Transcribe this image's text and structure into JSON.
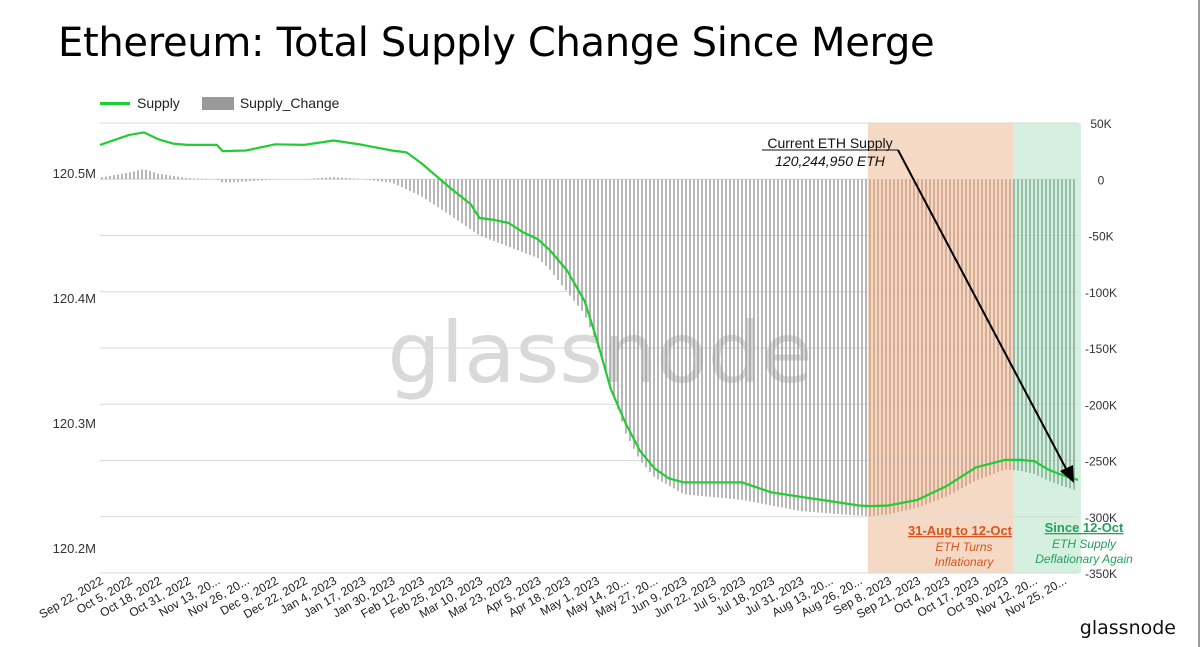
{
  "title": "Ethereum: Total Supply Change Since Merge",
  "brand": "glassnode",
  "watermark": "glassnode",
  "colors": {
    "supply_line": "#22cc33",
    "supply_change": "#999999",
    "inflationary_zone": "#f5d9c4",
    "inflationary_bars": "#c99a80",
    "deflationary_zone": "#d5f0de",
    "deflationary_bars": "#7aa88e",
    "grid": "#d9d9d9",
    "inflation_text": "#d9541e",
    "deflation_text": "#23a15c"
  },
  "chart_data": {
    "type": "line",
    "legend": {
      "position": "top-left",
      "items": [
        "Supply",
        "Supply_Change"
      ]
    },
    "x_ticks": [
      "Sep 22, 2022",
      "Oct 5, 2022",
      "Oct 18, 2022",
      "Oct 31, 2022",
      "Nov 13, 20...",
      "Nov 26, 20...",
      "Dec 9, 2022",
      "Dec 22, 2022",
      "Jan 4, 2023",
      "Jan 17, 2023",
      "Jan 30, 2023",
      "Feb 12, 2023",
      "Feb 25, 2023",
      "Mar 10, 2023",
      "Mar 23, 2023",
      "Apr 5, 2023",
      "Apr 18, 2023",
      "May 1, 2023",
      "May 14, 20...",
      "May 27, 20...",
      "Jun 9, 2023",
      "Jun 22, 2023",
      "Jul 5, 2023",
      "Jul 18, 2023",
      "Jul 31, 2023",
      "Aug 13, 20...",
      "Aug 26, 20...",
      "Sep 8, 2023",
      "Sep 21, 2023",
      "Oct 4, 2023",
      "Oct 17, 2023",
      "Oct 30, 2023",
      "Nov 12, 20...",
      "Nov 25, 20..."
    ],
    "y_left": {
      "label": "",
      "ticks": [
        "120.5M",
        "120.4M",
        "120.3M",
        "120.2M"
      ],
      "tick_values": [
        120.5,
        120.4,
        120.3,
        120.2
      ],
      "range": [
        120.18,
        120.54
      ]
    },
    "y_right": {
      "label": "",
      "ticks": [
        "50K",
        "0",
        "-50K",
        "-100K",
        "-150K",
        "-200K",
        "-250K",
        "-300K",
        "-350K"
      ],
      "tick_values": [
        50000,
        0,
        -50000,
        -100000,
        -150000,
        -200000,
        -250000,
        -300000,
        -350000
      ],
      "range": [
        -350000,
        50000
      ]
    },
    "grid": true,
    "series": [
      {
        "name": "Supply",
        "axis": "left",
        "note": "values in millions ETH, indexed by x-tick position",
        "points": [
          [
            0,
            120.5225
          ],
          [
            0.5,
            120.5265
          ],
          [
            1,
            120.5305
          ],
          [
            1.5,
            120.5325
          ],
          [
            2,
            120.527
          ],
          [
            2.5,
            120.5235
          ],
          [
            3,
            120.5225
          ],
          [
            3.5,
            120.5225
          ],
          [
            4,
            120.5225
          ],
          [
            4.2,
            120.5175
          ],
          [
            5,
            120.518
          ],
          [
            6,
            120.523
          ],
          [
            7,
            120.5225
          ],
          [
            8,
            120.526
          ],
          [
            9,
            120.5225
          ],
          [
            10,
            120.518
          ],
          [
            10.5,
            120.5165
          ],
          [
            11,
            120.508
          ],
          [
            11.5,
            120.498
          ],
          [
            12,
            120.488
          ],
          [
            12.7,
            120.475
          ],
          [
            13,
            120.464
          ],
          [
            13.5,
            120.4625
          ],
          [
            14,
            120.46
          ],
          [
            14.5,
            120.4525
          ],
          [
            15,
            120.447
          ],
          [
            15.4,
            120.4385
          ],
          [
            16,
            120.422
          ],
          [
            16.6,
            120.3975
          ],
          [
            17,
            120.368
          ],
          [
            17.5,
            120.327
          ],
          [
            18,
            120.3
          ],
          [
            18.5,
            120.2775
          ],
          [
            19,
            120.2635
          ],
          [
            19.5,
            120.2555
          ],
          [
            20,
            120.2525
          ],
          [
            21,
            120.2525
          ],
          [
            22,
            120.2525
          ],
          [
            22.5,
            120.2485
          ],
          [
            23,
            120.2445
          ],
          [
            24,
            120.241
          ],
          [
            25,
            120.2375
          ],
          [
            26,
            120.234
          ],
          [
            26.4,
            120.2335
          ],
          [
            27,
            120.234
          ],
          [
            28,
            120.2385
          ],
          [
            29,
            120.2495
          ],
          [
            30,
            120.2645
          ],
          [
            31,
            120.2705
          ],
          [
            31.5,
            120.2705
          ],
          [
            32,
            120.2695
          ],
          [
            32.5,
            120.2625
          ],
          [
            33,
            120.258
          ],
          [
            33.5,
            120.2545
          ]
        ]
      },
      {
        "name": "Supply_Change",
        "axis": "right",
        "note": "cumulative change in ETH (bars), indexed by x-tick position",
        "points": [
          [
            0,
            1500
          ],
          [
            1,
            6000
          ],
          [
            1.5,
            9000
          ],
          [
            2,
            5000
          ],
          [
            3,
            1000
          ],
          [
            4,
            0
          ],
          [
            4.2,
            -3000
          ],
          [
            5,
            -2000
          ],
          [
            6,
            0
          ],
          [
            7,
            0
          ],
          [
            8,
            2000
          ],
          [
            9,
            0
          ],
          [
            10,
            -3000
          ],
          [
            11,
            -15000
          ],
          [
            12,
            -32000
          ],
          [
            13,
            -50000
          ],
          [
            14,
            -60000
          ],
          [
            15,
            -70000
          ],
          [
            15.4,
            -80000
          ],
          [
            16,
            -100000
          ],
          [
            16.6,
            -120000
          ],
          [
            17,
            -145000
          ],
          [
            17.5,
            -185000
          ],
          [
            18,
            -225000
          ],
          [
            18.5,
            -250000
          ],
          [
            19,
            -265000
          ],
          [
            20,
            -280000
          ],
          [
            22,
            -285000
          ],
          [
            23,
            -290000
          ],
          [
            24,
            -295000
          ],
          [
            25,
            -297000
          ],
          [
            26,
            -299000
          ],
          [
            26.4,
            -299500
          ],
          [
            27,
            -298000
          ],
          [
            28,
            -292000
          ],
          [
            29,
            -282000
          ],
          [
            30,
            -268000
          ],
          [
            31,
            -258000
          ],
          [
            31.5,
            -259000
          ],
          [
            32,
            -262000
          ],
          [
            32.5,
            -268000
          ],
          [
            33,
            -273000
          ],
          [
            33.5,
            -277000
          ]
        ]
      }
    ],
    "shaded_regions": [
      {
        "x_start": 26.3,
        "x_end": 31.3,
        "label": "inflationary"
      },
      {
        "x_start": 31.3,
        "x_end": 33.6,
        "label": "deflationary"
      }
    ]
  },
  "annotations": {
    "current_supply": {
      "title": "Current ETH Supply",
      "value": "120,244,950 ETH"
    },
    "inflationary": {
      "title": "31-Aug to 12-Oct",
      "line1": "ETH Turns",
      "line2": "Inflationary"
    },
    "deflationary": {
      "title": "Since 12-Oct",
      "line1": "ETH Supply",
      "line2": "Deflationary Again"
    }
  }
}
